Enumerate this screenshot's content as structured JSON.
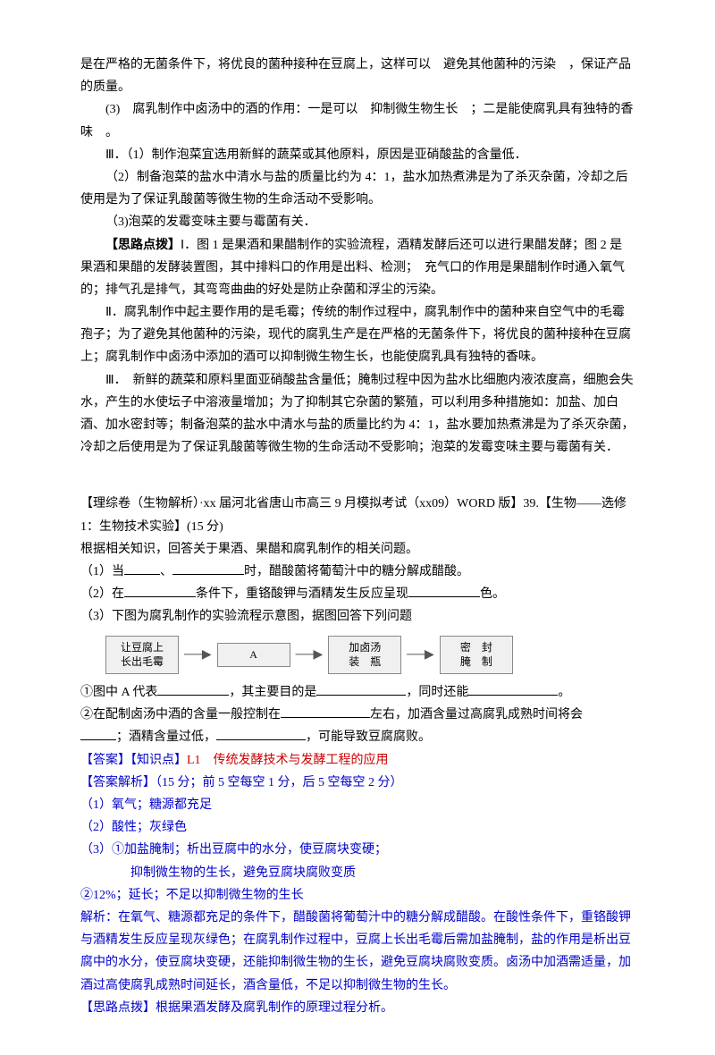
{
  "p1": "是在严格的无菌条件下，将优良的菌种接种在豆腐上，这样可以　避免其他菌种的污染　，保证产品的质量。",
  "p2": "(3)　腐乳制作中卤汤中的酒的作用：一是可以　抑制微生物生长　；二是能使腐乳具有独特的香味　。",
  "p3": "Ⅲ．（1）制作泡菜宜选用新鲜的蔬菜或其他原料，原因是亚硝酸盐的含量低．",
  "p4": "（2）制备泡菜的盐水中清水与盐的质量比约为 4：1，盐水加热煮沸是为了杀灭杂菌，冷却之后使用是为了保证乳酸菌等微生物的生命活动不受影响。",
  "p5": "（3)泡菜的发霉变味主要与霉菌有关．",
  "p6a": "【思路点拨】",
  "p6b": "Ⅰ．图 1 是果酒和果醋制作的实验流程，酒精发酵后还可以进行果醋发酵；图 2 是果酒和果醋的发酵装置图，其中排料口的作用是出料、检测；　充气口的作用是果醋制作时通入氧气的；排气孔是排气，其弯弯曲曲的好处是防止杂菌和浮尘的污染。",
  "p7": "Ⅱ．腐乳制作中起主要作用的是毛霉；传统的制作过程中，腐乳制作中的菌种来自空气中的毛霉孢子；为了避免其他菌种的污染，现代的腐乳生产是在严格的无菌条件下，将优良的菌种接种在豆腐上；腐乳制作中卤汤中添加的酒可以抑制微生物生长，也能使腐乳具有独特的香味。",
  "p8": "Ⅲ．　新鲜的蔬菜和原料里面亚硝酸盐含量低；腌制过程中因为盐水比细胞内液浓度高，细胞会失水，产生的水使坛子中溶液量增加；为了抑制其它杂菌的繁殖，可以利用多种措施如：加盐、加白酒、加水密封等；制备泡菜的盐水中清水与盐的质量比约为 4：1，盐水要加热煮沸是为了杀灭杂菌，冷却之后使用是为了保证乳酸菌等微生物的生命活动不受影响；泡菜的发霉变味主要与霉菌有关．",
  "src": "【理综卷（生物解析）·xx 届河北省唐山市高三 9 月模拟考试（xx09）WORD 版】39.【生物——选修 1：生物技术实验】(15 分)",
  "q0": "根据相关知识，回答关于果酒、果醋和腐乳制作的相关问题。",
  "q1a": "（1）当",
  "q1b": "、",
  "q1c": "时，醋酸菌将葡萄汁中的糖分解成醋酸。",
  "q2a": "（2）在",
  "q2b": "条件下，重铬酸钾与酒精发生反应呈现",
  "q2c": "色。",
  "q3": "（3）下图为腐乳制作的实验流程示意图，据图回答下列问题",
  "flow": {
    "b1": "让豆腐上\n长出毛霉",
    "b2": "A",
    "b3": "加卤汤\n装　瓶",
    "b4": "密　封\n腌　制"
  },
  "q3_1a": "①图中 A 代表",
  "q3_1b": "，其主要目的是",
  "q3_1c": "，同时还能",
  "q3_1d": "。",
  "q3_2a": "②在配制卤汤中酒的含量一般控制在",
  "q3_2b": "左右，加酒含量过高腐乳成熟时间将会",
  "q3_2c": "；酒精含量过低，",
  "q3_2d": "，可能导致豆腐腐败。",
  "ans_label": "【答案】【知识点】",
  "ans_red": "L1　传统发酵技术与发酵工程的应用",
  "exp_label": "【答案解析】（15 分；前 5 空每空 1 分，后 5 空每空 2 分）",
  "a1": "（1）氧气；糖源都充足",
  "a2": "（2）酸性；灰绿色",
  "a3_1": "（3）①加盐腌制；析出豆腐中的水分，使豆腐块变硬；",
  "a3_1b": "　　　　抑制微生物的生长，避免豆腐块腐败变质",
  "a3_2": "②12%；延长；不足以抑制微生物的生长",
  "exp_body": "解析：在氧气、糖源都充足的条件下，醋酸菌将葡萄汁中的糖分解成醋酸。在酸性条件下，重铬酸钾与酒精发生反应呈现灰绿色；在腐乳制作过程中，豆腐上长出毛霉后需加盐腌制，盐的作用是析出豆腐中的水分，使豆腐块变硬，还能抑制微生物的生长，避免豆腐块腐败变质。卤汤中加酒需适量，加酒过高使腐乳成熟时间延长，酒含量低，不足以抑制微生物的生长。",
  "hint_label": "【思路点拨】",
  "hint_body": "根据果酒发酵及腐乳制作的原理过程分析。"
}
